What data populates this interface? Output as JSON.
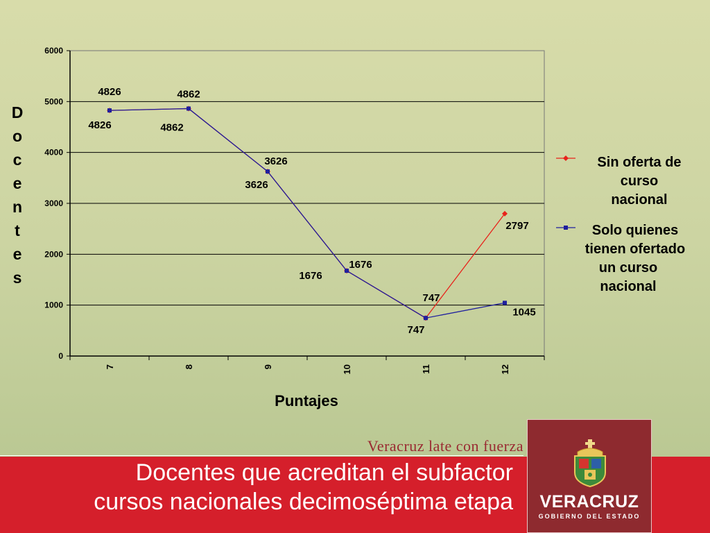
{
  "chart_data": {
    "type": "line",
    "title": "Docentes que acreditan el subfactor cursos nacionales decimoséptima etapa",
    "xlabel": "Puntajes",
    "ylabel": "Docentes",
    "categories": [
      "7",
      "8",
      "9",
      "10",
      "11",
      "12"
    ],
    "ylim": [
      0,
      6000
    ],
    "yticks": [
      "0",
      "1000",
      "2000",
      "3000",
      "4000",
      "5000",
      "6000"
    ],
    "grid": "horizontal",
    "legend_position": "right",
    "series": [
      {
        "name": "Sin oferta de curso nacional",
        "legend_lines": [
          "Sin oferta de",
          "curso",
          "nacional"
        ],
        "color": "#e8231b",
        "marker": "diamond",
        "values": [
          4826,
          4862,
          3626,
          1676,
          747,
          2797
        ],
        "labels": [
          "4826",
          "4862",
          "3626",
          "1676",
          "747",
          "2797"
        ]
      },
      {
        "name": "Solo quienes tienen ofertado un curso nacional",
        "legend_lines": [
          "Solo quienes",
          "tienen ofertado",
          "un curso",
          "nacional"
        ],
        "color": "#1f1f9e",
        "marker": "square",
        "values": [
          4826,
          4862,
          3626,
          1676,
          747,
          1045
        ],
        "labels": [
          "4826",
          "4862",
          "3626",
          "1676",
          "747",
          "1045"
        ]
      }
    ]
  },
  "footer": {
    "tagline": "Veracruz late con fuerza",
    "title_line1": "Docentes que acreditan el subfactor",
    "title_line2": "cursos nacionales decimoséptima etapa"
  },
  "logo": {
    "name": "VERACRUZ",
    "subtitle": "GOBIERNO DEL ESTADO",
    "icon": "veracruz-crest-icon"
  },
  "colors": {
    "footer_band": "#d51f2b",
    "logo_panel": "#8e2a2f",
    "tagline": "#9a2a32"
  }
}
